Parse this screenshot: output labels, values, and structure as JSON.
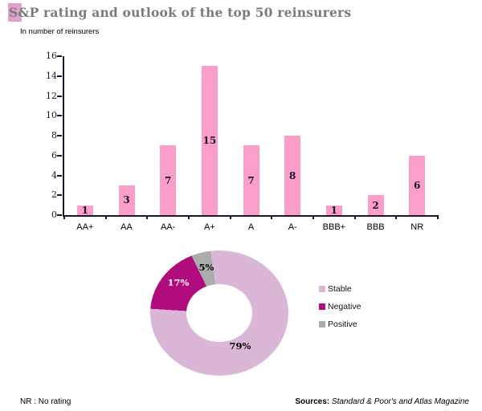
{
  "title": "S&P rating and outlook of the top 50 reinsurers",
  "subtitle": "In number of reinsurers",
  "footnote": "NR : No rating",
  "sources": {
    "label": "Sources:",
    "text": " Standard & Poor's and Atlas Magazine"
  },
  "colors": {
    "bar_pink": "#FB9EC9",
    "title_grey": "#7b7b7b",
    "title_highlight": "#DFA2CA",
    "axis_dark": "#17172b",
    "stable_pink": "#DBB7D7",
    "negative_magenta": "#B00C7D",
    "positive_grey": "#ACACAC"
  },
  "chart_data": [
    {
      "type": "bar",
      "title": "S&P rating and outlook of the top 50 reinsurers",
      "categories": [
        "AA+",
        "AA",
        "AA-",
        "A+",
        "A",
        "A-",
        "BBB+",
        "BBB",
        "NR"
      ],
      "values": [
        1,
        3,
        7,
        15,
        7,
        8,
        1,
        2,
        6
      ],
      "xlabel": "",
      "ylabel": "In number of reinsurers",
      "ylim": [
        0,
        16
      ],
      "ytick_step": 2,
      "bar_color": "#FB9EC9",
      "grid": false,
      "legend_position": "none"
    },
    {
      "type": "pie",
      "subtype": "donut",
      "start_angle_deg": -8,
      "slices": [
        {
          "label": "Stable",
          "value": 79,
          "pct_label": "79%",
          "color": "#DBB7D7"
        },
        {
          "label": "Negative",
          "value": 17,
          "pct_label": "17%",
          "color": "#B00C7D"
        },
        {
          "label": "Positive",
          "value": 5,
          "pct_label": "5%",
          "color": "#ACACAC"
        }
      ],
      "legend_position": "right"
    }
  ]
}
